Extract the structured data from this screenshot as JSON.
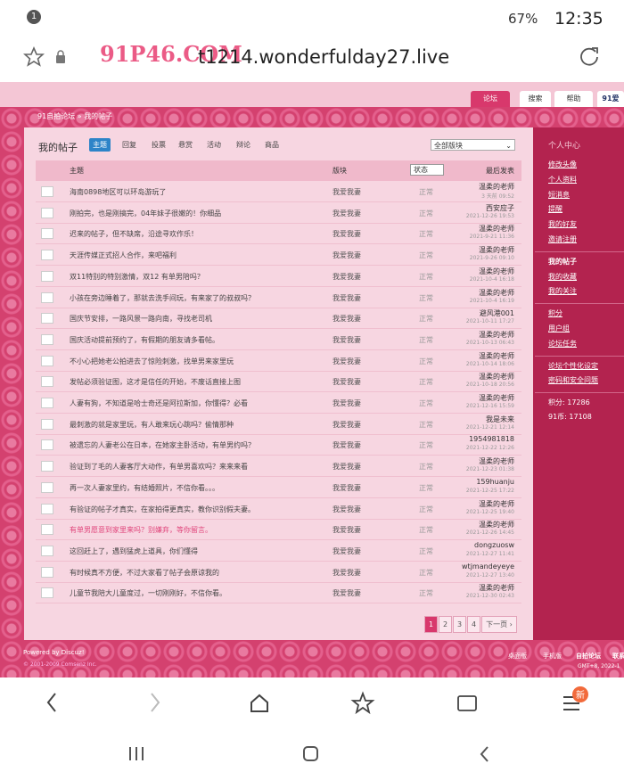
{
  "status_bar": {
    "notification": "1",
    "battery": "67%",
    "time": "12:35"
  },
  "address_bar": {
    "watermark": "91P46.COM",
    "url": "t1214.wonderfulday27.live"
  },
  "nav_tabs": [
    "论坛",
    "搜索",
    "帮助",
    "91爱"
  ],
  "breadcrumb": {
    "home": "91自拍论坛",
    "separator": "»",
    "current": "我的帖子"
  },
  "heading": "我的帖子",
  "filter_tabs": [
    "主题",
    "回复",
    "投票",
    "悬赏",
    "活动",
    "辩论",
    "商品"
  ],
  "forum_select": "全部版块",
  "table": {
    "headers": [
      "主题",
      "版块",
      "状态",
      "最后发表"
    ],
    "rows": [
      {
        "title": "海南0898地区可以环岛游玩了",
        "forum": "我爱我妻",
        "status": "正常",
        "last_user": "温柔的老师",
        "last_time": "3 天前 09:52"
      },
      {
        "title": "刚拍完，也是刚搞完，04年妹子很嫩的！你细品",
        "forum": "我爱我妻",
        "status": "正常",
        "last_user": "西安应子",
        "last_time": "2021-12-26 19:53"
      },
      {
        "title": "迟来的帖子，但不缺席，沿途寻欢作乐！",
        "forum": "我爱我妻",
        "status": "正常",
        "last_user": "温柔的老师",
        "last_time": "2021-9-21 11:36"
      },
      {
        "title": "天涯传媒正式招人合作，来吧福利",
        "forum": "我爱我妻",
        "status": "正常",
        "last_user": "温柔的老师",
        "last_time": "2021-9-26 09:10"
      },
      {
        "title": "双11特别的特别激情，双12 有单男陪吗？",
        "forum": "我爱我妻",
        "status": "正常",
        "last_user": "温柔的老师",
        "last_time": "2021-10-4 16:18"
      },
      {
        "title": "小孩在旁边睡着了，那就去洗手间玩，有来家了的叔叔吗？",
        "forum": "我爱我妻",
        "status": "正常",
        "last_user": "温柔的老师",
        "last_time": "2021-10-4 16:19"
      },
      {
        "title": "国庆节安排，一路风景一路向南，寻找老司机",
        "forum": "我爱我妻",
        "status": "正常",
        "last_user": "避风港001",
        "last_time": "2021-10-11 17:27"
      },
      {
        "title": "国庆活动提前预约了，有假期的朋友请多看帖。",
        "forum": "我爱我妻",
        "status": "正常",
        "last_user": "温柔的老师",
        "last_time": "2021-10-13 06:43"
      },
      {
        "title": "不小心把她老公拍进去了惊险刺激，找单男来家里玩",
        "forum": "我爱我妻",
        "status": "正常",
        "last_user": "温柔的老师",
        "last_time": "2021-10-14 18:06"
      },
      {
        "title": "发帖必须验证图，这才是信任的开始，不废话直接上图",
        "forum": "我爱我妻",
        "status": "正常",
        "last_user": "温柔的老师",
        "last_time": "2021-10-18 20:56"
      },
      {
        "title": "人妻有狗，不知道是哈士奇还是阿拉斯加，你懂得？必看",
        "forum": "我爱我妻",
        "status": "正常",
        "last_user": "温柔的老师",
        "last_time": "2021-12-16 15:59"
      },
      {
        "title": "最刺激的就是家里玩，有人敢来玩心跳吗？偷情那种",
        "forum": "我爱我妻",
        "status": "正常",
        "last_user": "我是未来",
        "last_time": "2021-12-21 12:14"
      },
      {
        "title": "被遗忘的人妻老公在日本，在她家主卧活动，有单男约吗？",
        "forum": "我爱我妻",
        "status": "正常",
        "last_user": "1954981818",
        "last_time": "2021-12-22 12:26"
      },
      {
        "title": "验证到了毛的人妻客厅大动作，有单男喜欢吗？来来来看",
        "forum": "我爱我妻",
        "status": "正常",
        "last_user": "温柔的老师",
        "last_time": "2021-12-23 01:38"
      },
      {
        "title": "再一次人妻家里约，有结婚照片，不信你看。。。",
        "forum": "我爱我妻",
        "status": "正常",
        "last_user": "159huanju",
        "last_time": "2021-12-25 17:22"
      },
      {
        "title": "有验证的帖子才真实，在家拍得更真实，教你识别假夫妻。",
        "forum": "我爱我妻",
        "status": "正常",
        "last_user": "温柔的老师",
        "last_time": "2021-12-25 19:40"
      },
      {
        "title": "有单男愿意到家里来吗？别嫌弃，等你留言。",
        "title_color": "#e0457b",
        "forum": "我爱我妻",
        "status": "正常",
        "last_user": "温柔的老师",
        "last_time": "2021-12-26 14:45"
      },
      {
        "title": "这回赶上了，遇到猛虎上道具，你们懂得",
        "forum": "我爱我妻",
        "status": "正常",
        "last_user": "dongzuosw",
        "last_time": "2021-12-27 11:41"
      },
      {
        "title": "有时候真不方便，不过大家看了帖子会原谅我的",
        "forum": "我爱我妻",
        "status": "正常",
        "last_user": "wtjmandeyeye",
        "last_time": "2021-12-27 13:40"
      },
      {
        "title": "儿童节我陪大儿童度过，一切刚刚好，不信你看。",
        "forum": "我爱我妻",
        "status": "正常",
        "last_user": "温柔的老师",
        "last_time": "2021-12-30 02:43"
      }
    ]
  },
  "pagination": {
    "pages": [
      "1",
      "2",
      "3",
      "4"
    ],
    "next": "下一页 ›"
  },
  "sidebar": {
    "title": "个人中心",
    "groups": [
      [
        "修改头像",
        "个人资料",
        "短消息",
        "提醒",
        "我的好友",
        "邀请注册"
      ],
      [
        "我的帖子",
        "我的收藏",
        "我的关注"
      ],
      [
        "积分",
        "用户组",
        "论坛任务"
      ],
      [
        "论坛个性化设定",
        "密码和安全问题"
      ]
    ],
    "stats": [
      "积分: 17286",
      "91币: 17108"
    ]
  },
  "footer": {
    "powered": "Powered by Discuz!",
    "copyright": "© 2001-2009 Comsenz Inc.",
    "links": [
      "桌面版",
      "手机版",
      "自拍论坛",
      "联系"
    ],
    "gmt": "GMT+8, 2022-1"
  },
  "browser_nav": {
    "badge": "新"
  }
}
